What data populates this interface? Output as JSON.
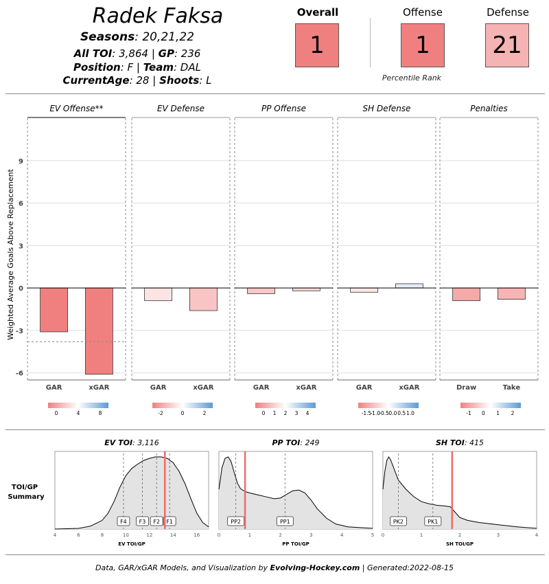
{
  "header": {
    "name": "Radek Faksa",
    "seasons_label": "Seasons",
    "seasons_value": ": 20,21,22",
    "toi_label": "All TOI",
    "toi_value": ": 3,864 | ",
    "gp_label": "GP",
    "gp_value": ": 236",
    "position_label": "Position",
    "position_value": ": F | ",
    "team_label": "Team",
    "team_value": ": DAL",
    "age_label": "CurrentAge",
    "age_value": ": 28 | ",
    "shoots_label": "Shoots",
    "shoots_value": ": L"
  },
  "ranks": {
    "overall_label": "Overall",
    "overall_value": "1",
    "offense_label": "Offense",
    "offense_value": "1",
    "defense_label": "Defense",
    "defense_value": "21",
    "note": "Percentile Rank",
    "colors": {
      "overall": "#f08080",
      "offense": "#f08080",
      "defense": "#f6b3b3"
    }
  },
  "footer": {
    "prefix": "Data, GAR/xGAR Models, and Visualization by ",
    "site": "Evolving-Hockey.com",
    "suffix": " | Generated:2022-08-15"
  },
  "chart_data": [
    {
      "type": "bar",
      "ylabel": "Weighted Average Goals Above Replacement",
      "ylim": [
        -6.5,
        12
      ],
      "yticks": [
        "9",
        "6",
        "3",
        "0",
        "-3",
        "-6"
      ],
      "yticks_values": [
        9,
        6,
        3,
        0,
        -3,
        -6
      ],
      "grid": true,
      "reference_line": {
        "panel": "EV Offense**",
        "value": -3.8
      },
      "panels": [
        {
          "title": "EV Offense**",
          "categories": [
            "GAR",
            "xGAR"
          ],
          "values": [
            -3.1,
            -6.1
          ],
          "colors": [
            "#f08080",
            "#f08080"
          ],
          "legend_ticks": [
            "0",
            "4",
            "8"
          ]
        },
        {
          "title": "EV Defense",
          "categories": [
            "GAR",
            "xGAR"
          ],
          "values": [
            -0.9,
            -1.6
          ],
          "colors": [
            "#fde4e4",
            "#f9c4c4"
          ],
          "legend_ticks": [
            "-2",
            "0",
            "2"
          ]
        },
        {
          "title": "PP Offense",
          "categories": [
            "GAR",
            "xGAR"
          ],
          "values": [
            -0.4,
            -0.2
          ],
          "colors": [
            "#f8c8c8",
            "#fbdada"
          ],
          "legend_ticks": [
            "0",
            "1",
            "2",
            "3",
            "4"
          ]
        },
        {
          "title": "SH Defense",
          "categories": [
            "GAR",
            "xGAR"
          ],
          "values": [
            -0.3,
            0.3
          ],
          "colors": [
            "#fde8e8",
            "#e4ecf8"
          ],
          "legend_ticks": [
            "-1.5",
            "-1.0",
            "-0.5",
            "0.0",
            "0.5",
            "1.0"
          ]
        },
        {
          "title": "Penalties",
          "categories": [
            "Draw",
            "Take"
          ],
          "values": [
            -0.9,
            -0.8
          ],
          "colors": [
            "#f6a9a9",
            "#f8b4b4"
          ],
          "legend_ticks": [
            "-1",
            "0",
            "1",
            "2"
          ]
        }
      ]
    },
    {
      "type": "area",
      "row_label": "TOI/GP Summary",
      "panels": [
        {
          "title_label": "EV TOI",
          "title_value": ": 3,116",
          "xlabel": "EV TOI/GP",
          "xlim": [
            4,
            17
          ],
          "xticks": [
            4,
            6,
            8,
            10,
            12,
            14,
            16
          ],
          "player_value": 13.3,
          "markers": [
            {
              "label": "F4",
              "value": 9.8
            },
            {
              "label": "F3",
              "value": 11.4
            },
            {
              "label": "F2",
              "value": 12.6
            },
            {
              "label": "F1",
              "value": 13.7
            }
          ],
          "density": [
            [
              4.0,
              0.0
            ],
            [
              6.0,
              0.01
            ],
            [
              7.0,
              0.04
            ],
            [
              8.0,
              0.12
            ],
            [
              8.5,
              0.22
            ],
            [
              9.0,
              0.38
            ],
            [
              9.5,
              0.58
            ],
            [
              10.0,
              0.74
            ],
            [
              10.5,
              0.84
            ],
            [
              11.0,
              0.9
            ],
            [
              11.5,
              0.95
            ],
            [
              12.0,
              0.98
            ],
            [
              12.5,
              1.0
            ],
            [
              13.0,
              1.0
            ],
            [
              13.5,
              0.98
            ],
            [
              14.0,
              0.92
            ],
            [
              14.5,
              0.8
            ],
            [
              15.0,
              0.63
            ],
            [
              15.5,
              0.42
            ],
            [
              16.0,
              0.22
            ],
            [
              16.5,
              0.09
            ],
            [
              17.0,
              0.03
            ]
          ]
        },
        {
          "title_label": "PP TOI",
          "title_value": ": 249",
          "xlabel": "PP TOI/GP",
          "xlim": [
            0,
            5
          ],
          "xticks": [
            0,
            1,
            2,
            3,
            4,
            5
          ],
          "player_value": 0.85,
          "markers": [
            {
              "label": "PP2",
              "value": 0.55
            },
            {
              "label": "PP1",
              "value": 2.15
            }
          ],
          "density": [
            [
              0.0,
              0.55
            ],
            [
              0.1,
              0.85
            ],
            [
              0.2,
              0.98
            ],
            [
              0.3,
              1.0
            ],
            [
              0.4,
              0.93
            ],
            [
              0.5,
              0.78
            ],
            [
              0.6,
              0.64
            ],
            [
              0.7,
              0.56
            ],
            [
              0.85,
              0.52
            ],
            [
              1.0,
              0.5
            ],
            [
              1.3,
              0.47
            ],
            [
              1.6,
              0.44
            ],
            [
              1.8,
              0.42
            ],
            [
              2.0,
              0.43
            ],
            [
              2.2,
              0.48
            ],
            [
              2.4,
              0.53
            ],
            [
              2.6,
              0.54
            ],
            [
              2.8,
              0.5
            ],
            [
              3.0,
              0.4
            ],
            [
              3.2,
              0.28
            ],
            [
              3.5,
              0.15
            ],
            [
              3.8,
              0.07
            ],
            [
              4.2,
              0.03
            ],
            [
              5.0,
              0.01
            ]
          ]
        },
        {
          "title_label": "SH TOI",
          "title_value": ": 415",
          "xlabel": "SH TOI/GP",
          "xlim": [
            0,
            4
          ],
          "xticks": [
            0,
            1,
            2,
            3,
            4
          ],
          "player_value": 1.8,
          "markers": [
            {
              "label": "PK2",
              "value": 0.4
            },
            {
              "label": "PK1",
              "value": 1.3
            }
          ],
          "density": [
            [
              0.0,
              0.55
            ],
            [
              0.05,
              0.8
            ],
            [
              0.1,
              0.95
            ],
            [
              0.15,
              1.0
            ],
            [
              0.2,
              0.96
            ],
            [
              0.3,
              0.82
            ],
            [
              0.4,
              0.68
            ],
            [
              0.6,
              0.55
            ],
            [
              0.8,
              0.45
            ],
            [
              1.0,
              0.38
            ],
            [
              1.2,
              0.35
            ],
            [
              1.4,
              0.33
            ],
            [
              1.6,
              0.32
            ],
            [
              1.75,
              0.31
            ],
            [
              1.85,
              0.25
            ],
            [
              2.0,
              0.16
            ],
            [
              2.2,
              0.12
            ],
            [
              2.5,
              0.09
            ],
            [
              3.0,
              0.06
            ],
            [
              3.5,
              0.03
            ],
            [
              4.0,
              0.01
            ]
          ]
        }
      ]
    }
  ]
}
